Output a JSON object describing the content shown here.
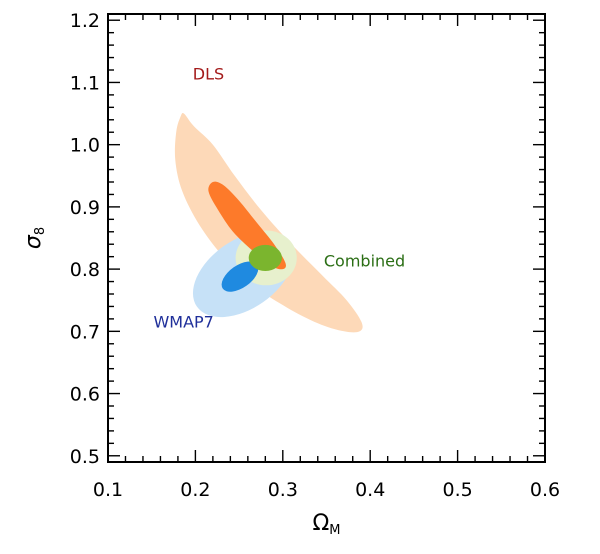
{
  "chart_data": {
    "type": "contour",
    "xlabel": "Ω",
    "xlabel_sub": "M",
    "ylabel": "σ",
    "ylabel_sub": "8",
    "xlim": [
      0.1,
      0.6
    ],
    "ylim": [
      0.49,
      1.21
    ],
    "xticks": [
      0.1,
      0.2,
      0.3,
      0.4,
      0.5,
      0.6
    ],
    "xtick_labels": [
      "0.1",
      "0.2",
      "0.3",
      "0.4",
      "0.5",
      "0.6"
    ],
    "yticks": [
      0.5,
      0.6,
      0.7,
      0.8,
      0.9,
      1.0,
      1.1,
      1.2
    ],
    "ytick_labels": [
      "0.5",
      "0.6",
      "0.7",
      "0.8",
      "0.9",
      "1.0",
      "1.1",
      "1.2"
    ],
    "grid": false,
    "series": [
      {
        "name": "DLS",
        "color": "#a31a1a",
        "label_pos": [
          0.197,
          1.105
        ],
        "regions": [
          {
            "level": "2sigma",
            "fill": "#fdd9b8",
            "outline": [
              [
                0.187,
                1.05
              ],
              [
                0.198,
                1.03
              ],
              [
                0.22,
                1.0
              ],
              [
                0.245,
                0.95
              ],
              [
                0.275,
                0.895
              ],
              [
                0.31,
                0.84
              ],
              [
                0.345,
                0.79
              ],
              [
                0.373,
                0.75
              ],
              [
                0.39,
                0.715
              ],
              [
                0.388,
                0.7
              ],
              [
                0.37,
                0.7
              ],
              [
                0.34,
                0.713
              ],
              [
                0.305,
                0.738
              ],
              [
                0.27,
                0.77
              ],
              [
                0.235,
                0.815
              ],
              [
                0.205,
                0.87
              ],
              [
                0.185,
                0.925
              ],
              [
                0.177,
                0.975
              ],
              [
                0.178,
                1.02
              ],
              [
                0.183,
                1.045
              ]
            ]
          },
          {
            "level": "1sigma",
            "fill": "#fd7a2a",
            "outline": [
              [
                0.22,
                0.94
              ],
              [
                0.232,
                0.935
              ],
              [
                0.25,
                0.91
              ],
              [
                0.27,
                0.875
              ],
              [
                0.29,
                0.84
              ],
              [
                0.303,
                0.81
              ],
              [
                0.3,
                0.8
              ],
              [
                0.287,
                0.805
              ],
              [
                0.265,
                0.83
              ],
              [
                0.243,
                0.86
              ],
              [
                0.226,
                0.895
              ],
              [
                0.215,
                0.925
              ]
            ]
          }
        ]
      },
      {
        "name": "WMAP7",
        "color": "#1f2f9a",
        "label_pos": [
          0.152,
          0.706
        ],
        "regions": [
          {
            "level": "2sigma",
            "fill": "#c6e1f7",
            "ellipse": {
              "center": [
                0.255,
                0.792
              ],
              "rx": 0.065,
              "ry": 0.055,
              "tilt": 35
            }
          },
          {
            "level": "1sigma",
            "fill": "#1f8ae0",
            "ellipse": {
              "center": [
                0.251,
                0.788
              ],
              "rx": 0.024,
              "ry": 0.018,
              "tilt": 35
            }
          }
        ]
      },
      {
        "name": "Combined",
        "color": "#2b6e15",
        "label_pos": [
          0.347,
          0.804
        ],
        "regions": [
          {
            "level": "2sigma",
            "fill": "#e7f0cd",
            "ellipse": {
              "center": [
                0.281,
                0.818
              ],
              "rx": 0.035,
              "ry": 0.044,
              "tilt": 0
            }
          },
          {
            "level": "1sigma",
            "fill": "#7bb52e",
            "ellipse": {
              "center": [
                0.28,
                0.818
              ],
              "rx": 0.019,
              "ry": 0.021,
              "tilt": 0
            }
          }
        ]
      }
    ]
  }
}
